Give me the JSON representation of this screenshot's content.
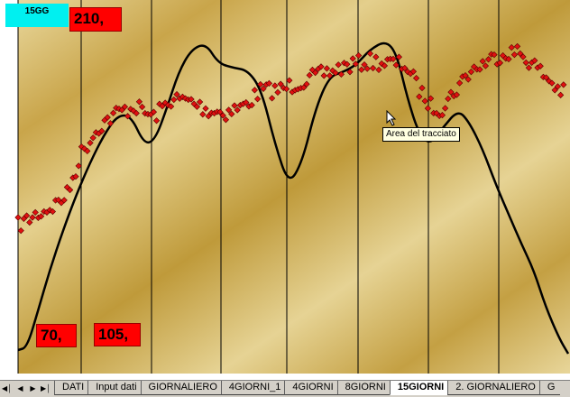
{
  "labels": {
    "period": "15GG",
    "value_top": "210,",
    "value_left": "70,",
    "value_mid": "105,"
  },
  "tooltip": "Area del tracciato",
  "sheet_tabs": [
    "DATI",
    "Input dati",
    "GIORNALIERO",
    "4GIORNI_1",
    "4GIORNI",
    "8GIORNI",
    "15GIORNI",
    "2. GIORNALIERO",
    "G"
  ],
  "active_tab": "15GIORNI",
  "nav_buttons": [
    "first-sheet",
    "prev-sheet",
    "next-sheet",
    "last-sheet"
  ],
  "colors": {
    "plot_gold_light": "#e8d79a",
    "plot_gold_dark": "#b8952f",
    "marker_fill": "#e01010",
    "curve": "#000000",
    "period_badge": "#00f0f0",
    "value_badge": "#ff0000"
  }
}
